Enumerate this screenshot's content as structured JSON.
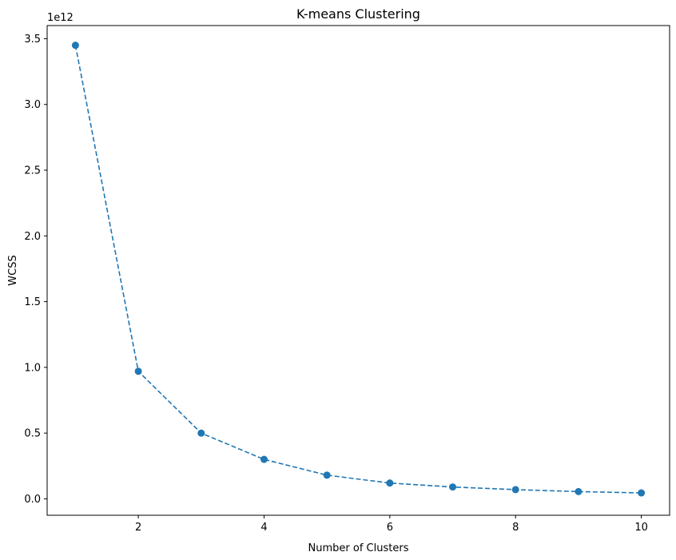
{
  "chart_data": {
    "type": "line",
    "title": "K-means Clustering",
    "xlabel": "Number of Clusters",
    "ylabel": "WCSS",
    "y_offset_label": "1e12",
    "xlim": [
      0.55,
      10.45
    ],
    "ylim": [
      -0.125,
      3.6
    ],
    "x_ticks": [
      2,
      4,
      6,
      8,
      10
    ],
    "x_tick_labels": [
      "2",
      "4",
      "6",
      "8",
      "10"
    ],
    "y_ticks": [
      0.0,
      0.5,
      1.0,
      1.5,
      2.0,
      2.5,
      3.0,
      3.5
    ],
    "y_tick_labels": [
      "0.0",
      "0.5",
      "1.0",
      "1.5",
      "2.0",
      "2.5",
      "3.0",
      "3.5"
    ],
    "grid": false,
    "line_style": "dashed",
    "marker": "circle",
    "color": "#1f77b4",
    "series": [
      {
        "x": [
          1,
          2,
          3,
          4,
          5,
          6,
          7,
          8,
          9,
          10
        ],
        "y": [
          3.45,
          0.97,
          0.5,
          0.3,
          0.18,
          0.12,
          0.09,
          0.07,
          0.055,
          0.045
        ]
      }
    ]
  }
}
